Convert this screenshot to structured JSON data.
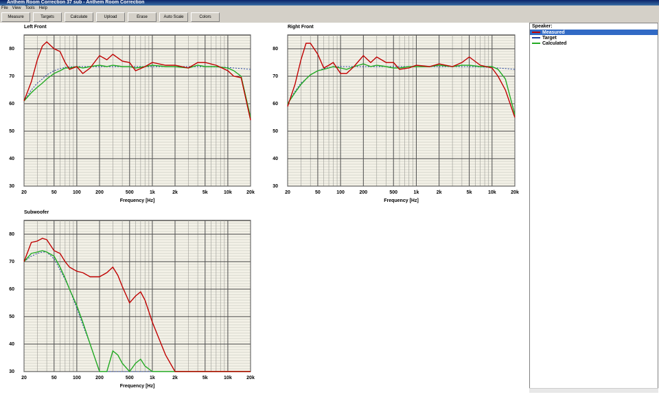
{
  "window": {
    "title": "Anthem Room Correction 37 sub - Anthem Room Correction"
  },
  "menu": [
    "File",
    "View",
    "Tools",
    "Help"
  ],
  "toolbar": [
    "Measure",
    "Targets",
    "Calculate",
    "Upload",
    "Erase",
    "Auto Scale",
    "Colors"
  ],
  "legend": {
    "title": "Speaker:",
    "items": [
      "Measured",
      "Target",
      "Calculated"
    ]
  },
  "chart_data": [
    {
      "type": "line",
      "title": "Left Front",
      "x_label": "Frequency [Hz]",
      "xscale": "log",
      "xlim": [
        20,
        20000
      ],
      "ylim": [
        30,
        85
      ],
      "xticks": [
        20,
        50,
        100,
        200,
        500,
        {
          "value": 1000,
          "label": "1k"
        },
        {
          "value": 2000,
          "label": "2k"
        },
        {
          "value": 5000,
          "label": "5k"
        },
        {
          "value": 10000,
          "label": "10k"
        },
        {
          "value": 20000,
          "label": "20k"
        }
      ],
      "yticks": [
        30,
        40,
        50,
        60,
        70,
        80
      ],
      "grid": true,
      "x": [
        20,
        25,
        30,
        35,
        40,
        50,
        60,
        70,
        80,
        100,
        120,
        150,
        200,
        250,
        300,
        400,
        500,
        600,
        800,
        1000,
        1500,
        2000,
        3000,
        4000,
        5000,
        7000,
        10000,
        12000,
        15000,
        20000
      ],
      "series": [
        {
          "name": "Measured",
          "color": "#c00000",
          "values": [
            61,
            68,
            76,
            81,
            82.5,
            80,
            79,
            75,
            72.5,
            73.5,
            71,
            73,
            77.5,
            76,
            78,
            75.5,
            75,
            72,
            73.5,
            75,
            74,
            74,
            73,
            75,
            75,
            74,
            72,
            70,
            69.5,
            54
          ]
        },
        {
          "name": "Target",
          "color": "#2040a0",
          "values": [
            61,
            65,
            67.5,
            69,
            70.5,
            72,
            72.8,
            73.2,
            73.4,
            73.5,
            73.5,
            73.5,
            73.5,
            73.5,
            73.5,
            73.5,
            73.5,
            73.5,
            73.5,
            73.5,
            73.5,
            73.5,
            73.5,
            73.5,
            73.5,
            73.4,
            73.2,
            73,
            72.8,
            72.5
          ]
        },
        {
          "name": "Calculated",
          "color": "#22aa22",
          "values": [
            61,
            64,
            66,
            67.5,
            69,
            71,
            72,
            73,
            73,
            73.5,
            73,
            73.5,
            74,
            73.5,
            74,
            73.5,
            73.5,
            73,
            73.5,
            74,
            73.5,
            73.5,
            73,
            74,
            73.5,
            73.5,
            73,
            72,
            70,
            55
          ]
        }
      ]
    },
    {
      "type": "line",
      "title": "Right Front",
      "x_label": "Frequency [Hz]",
      "xscale": "log",
      "xlim": [
        20,
        20000
      ],
      "ylim": [
        30,
        85
      ],
      "xticks": [
        20,
        50,
        100,
        200,
        500,
        {
          "value": 1000,
          "label": "1k"
        },
        {
          "value": 2000,
          "label": "2k"
        },
        {
          "value": 5000,
          "label": "5k"
        },
        {
          "value": 10000,
          "label": "10k"
        },
        {
          "value": 20000,
          "label": "20k"
        }
      ],
      "yticks": [
        30,
        40,
        50,
        60,
        70,
        80
      ],
      "grid": true,
      "x": [
        20,
        25,
        30,
        35,
        40,
        50,
        60,
        70,
        80,
        100,
        120,
        150,
        200,
        250,
        300,
        400,
        500,
        600,
        800,
        1000,
        1500,
        2000,
        3000,
        4000,
        5000,
        7000,
        10000,
        12000,
        15000,
        20000
      ],
      "series": [
        {
          "name": "Measured",
          "color": "#c00000",
          "values": [
            59,
            67,
            76,
            82,
            82,
            78,
            73,
            74,
            75,
            71,
            71,
            73.5,
            77.5,
            75,
            77,
            75,
            75,
            72.5,
            73,
            74,
            73.5,
            74.5,
            73.5,
            75,
            77,
            74,
            73,
            70,
            65,
            55
          ]
        },
        {
          "name": "Target",
          "color": "#2040a0",
          "values": [
            60,
            64.5,
            67.5,
            69,
            70.5,
            72,
            72.8,
            73.2,
            73.4,
            73.5,
            73.5,
            73.5,
            73.5,
            73.5,
            73.5,
            73.5,
            73.5,
            73.5,
            73.5,
            73.5,
            73.5,
            73.5,
            73.5,
            73.5,
            73.5,
            73.4,
            73.2,
            73,
            72.8,
            72.5
          ]
        },
        {
          "name": "Calculated",
          "color": "#22aa22",
          "values": [
            60,
            64,
            67,
            69,
            70.5,
            72,
            72.5,
            73,
            73.5,
            73,
            72.5,
            73.5,
            74.5,
            73.5,
            74,
            73.5,
            73,
            73,
            73.5,
            73.5,
            73.5,
            74,
            73.5,
            74,
            74,
            73.5,
            73.5,
            72.5,
            69,
            56
          ]
        }
      ]
    },
    {
      "type": "line",
      "title": "Subwoofer",
      "x_label": "Frequency [Hz]",
      "xscale": "log",
      "xlim": [
        20,
        20000
      ],
      "ylim": [
        30,
        85
      ],
      "xticks": [
        20,
        50,
        100,
        200,
        500,
        {
          "value": 1000,
          "label": "1k"
        },
        {
          "value": 2000,
          "label": "2k"
        },
        {
          "value": 5000,
          "label": "5k"
        },
        {
          "value": 10000,
          "label": "10k"
        },
        {
          "value": 20000,
          "label": "20k"
        }
      ],
      "yticks": [
        30,
        40,
        50,
        60,
        70,
        80
      ],
      "grid": true,
      "x": [
        20,
        25,
        30,
        35,
        40,
        50,
        60,
        70,
        80,
        100,
        120,
        150,
        200,
        250,
        300,
        350,
        400,
        500,
        600,
        700,
        800,
        1000,
        1500,
        2000,
        5000,
        10000,
        20000
      ],
      "series": [
        {
          "name": "Measured",
          "color": "#c00000",
          "values": [
            70,
            77,
            77.5,
            78.5,
            78,
            74,
            73,
            70,
            68,
            66.5,
            66,
            64.5,
            64.5,
            66,
            68,
            65,
            61,
            55,
            57.5,
            59,
            56,
            48,
            36,
            30,
            30,
            30,
            30
          ]
        },
        {
          "name": "Target",
          "color": "#2040a0",
          "values": [
            70,
            72,
            73,
            73.5,
            73.5,
            71,
            67,
            63.5,
            60,
            53,
            47,
            40,
            30,
            30,
            30,
            30,
            30,
            30,
            30,
            30,
            30,
            30,
            30,
            30,
            30,
            30,
            30
          ]
        },
        {
          "name": "Calculated",
          "color": "#22aa22",
          "values": [
            70,
            73,
            73.5,
            74,
            73.5,
            72,
            68,
            64,
            60,
            54,
            48,
            40,
            30,
            30,
            37.5,
            36,
            33,
            30,
            33,
            34.5,
            32,
            30,
            30,
            30,
            30,
            30,
            30
          ]
        }
      ]
    }
  ]
}
